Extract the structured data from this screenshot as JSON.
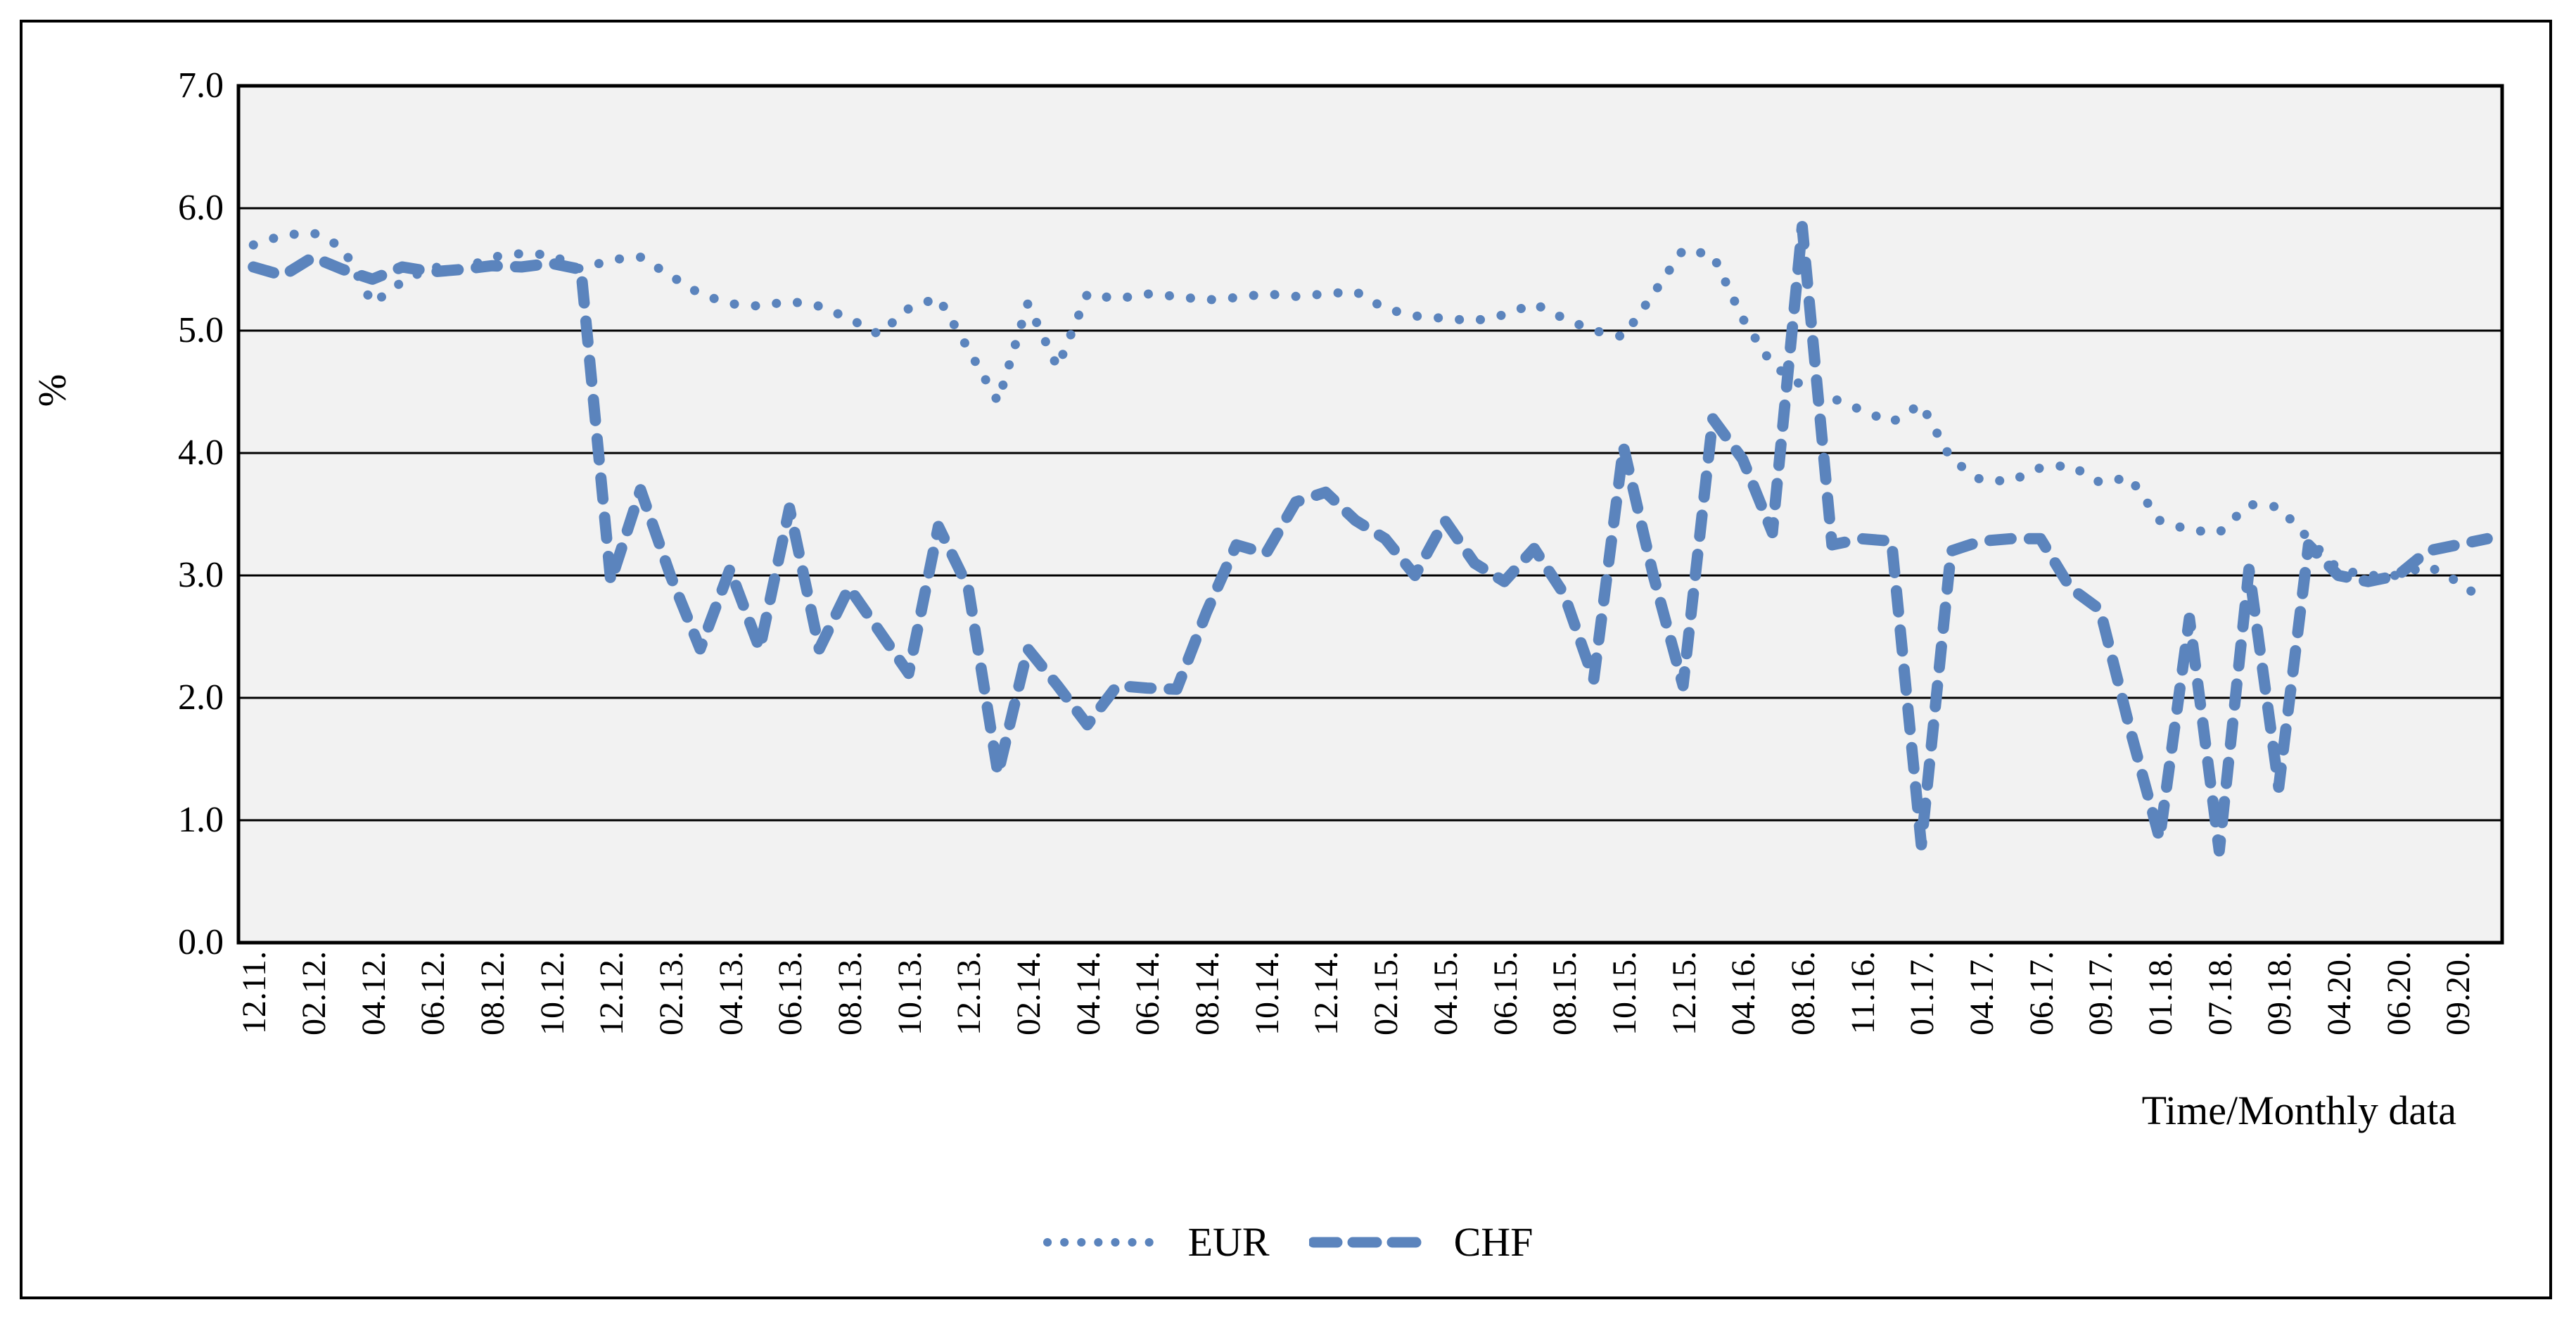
{
  "figure": {
    "accent_color": "#5B84BD",
    "plot_background": "#F2F2F2",
    "gridline_color": "#000000",
    "outer_background": "#FFFFFF"
  },
  "y_axis": {
    "title": "%",
    "ticks": [
      "7.0",
      "6.0",
      "5.0",
      "4.0",
      "3.0",
      "2.0",
      "1.0",
      "0.0"
    ]
  },
  "x_axis": {
    "title": "Time/Monthly data",
    "visible_labels": [
      "12.11.",
      "02.12.",
      "04.12.",
      "06.12.",
      "08.12.",
      "10.12.",
      "12.12.",
      "02.13.",
      "04.13.",
      "06.13.",
      "08.13.",
      "10.13.",
      "12.13.",
      "02.14.",
      "04.14.",
      "06.14.",
      "08.14.",
      "10.14.",
      "12.14.",
      "02.15.",
      "04.15.",
      "06.15.",
      "08.15.",
      "10.15.",
      "12.15.",
      "04.16.",
      "08.16.",
      "11.16.",
      "01.17.",
      "04.17.",
      "06.17.",
      "09.17.",
      "01.18.",
      "07.18.",
      "09.18.",
      "04.20.",
      "06.20.",
      "09.20."
    ],
    "label_every": 2
  },
  "legend": [
    {
      "name": "EUR",
      "style": "dotted"
    },
    {
      "name": "CHF",
      "style": "dashed"
    }
  ],
  "chart_data": {
    "type": "line",
    "title": "",
    "xlabel": "Time/Monthly data",
    "ylabel": "%",
    "ylim": [
      0,
      7
    ],
    "y_step": 1,
    "grid": true,
    "legend_position": "bottom",
    "x": [
      "12.11.",
      "",
      "02.12.",
      "",
      "04.12.",
      "",
      "06.12.",
      "",
      "08.12.",
      "",
      "10.12.",
      "",
      "12.12.",
      "",
      "02.13.",
      "",
      "04.13.",
      "",
      "06.13.",
      "",
      "08.13.",
      "",
      "10.13.",
      "",
      "12.13.",
      "",
      "02.14.",
      "",
      "04.14.",
      "",
      "06.14.",
      "",
      "08.14.",
      "",
      "10.14.",
      "",
      "12.14.",
      "",
      "02.15.",
      "",
      "04.15.",
      "",
      "06.15.",
      "",
      "08.15.",
      "",
      "10.15.",
      "",
      "12.15.",
      "",
      "04.16.",
      "",
      "08.16.",
      "",
      "11.16.",
      "",
      "01.17.",
      "",
      "04.17.",
      "",
      "06.17.",
      "",
      "09.17.",
      "",
      "01.18.",
      "",
      "07.18.",
      "",
      "09.18.",
      "",
      "04.20.",
      "",
      "06.20.",
      "",
      "09.20.",
      ""
    ],
    "series": [
      {
        "name": "EUR",
        "style": "dotted",
        "color": "#5B84BD",
        "values": [
          5.7,
          5.78,
          5.8,
          5.68,
          5.22,
          5.4,
          5.52,
          5.5,
          5.6,
          5.63,
          5.62,
          5.5,
          5.58,
          5.6,
          5.45,
          5.3,
          5.22,
          5.2,
          5.24,
          5.2,
          5.1,
          4.97,
          5.18,
          5.27,
          4.85,
          4.42,
          5.22,
          4.7,
          5.3,
          5.26,
          5.3,
          5.28,
          5.25,
          5.27,
          5.3,
          5.28,
          5.3,
          5.32,
          5.18,
          5.12,
          5.1,
          5.08,
          5.13,
          5.22,
          5.1,
          5.0,
          4.95,
          5.3,
          5.66,
          5.62,
          5.1,
          4.72,
          4.55,
          4.45,
          4.35,
          4.25,
          4.4,
          3.95,
          3.78,
          3.77,
          3.88,
          3.9,
          3.76,
          3.8,
          3.45,
          3.37,
          3.35,
          3.58,
          3.56,
          3.3,
          3.05,
          3.0,
          3.0,
          3.08,
          2.95,
          2.78
        ]
      },
      {
        "name": "CHF",
        "style": "dashed",
        "color": "#5B84BD",
        "values": [
          5.52,
          5.45,
          5.6,
          5.5,
          5.42,
          5.52,
          5.48,
          5.5,
          5.53,
          5.52,
          5.55,
          5.5,
          2.95,
          3.7,
          3.0,
          2.4,
          3.05,
          2.4,
          3.55,
          2.4,
          2.9,
          2.55,
          2.2,
          3.4,
          2.9,
          1.38,
          2.4,
          2.1,
          1.78,
          2.1,
          2.08,
          2.07,
          2.7,
          3.25,
          3.18,
          3.6,
          3.68,
          3.45,
          3.3,
          3.0,
          3.45,
          3.1,
          2.95,
          3.22,
          2.85,
          2.15,
          4.05,
          3.0,
          2.1,
          4.28,
          3.95,
          3.35,
          5.85,
          3.25,
          3.3,
          3.28,
          0.8,
          3.2,
          3.28,
          3.3,
          3.3,
          2.9,
          2.72,
          1.75,
          0.85,
          2.65,
          0.75,
          3.05,
          1.27,
          3.25,
          3.0,
          2.95,
          3.0,
          3.2,
          3.25,
          3.3
        ]
      }
    ]
  }
}
